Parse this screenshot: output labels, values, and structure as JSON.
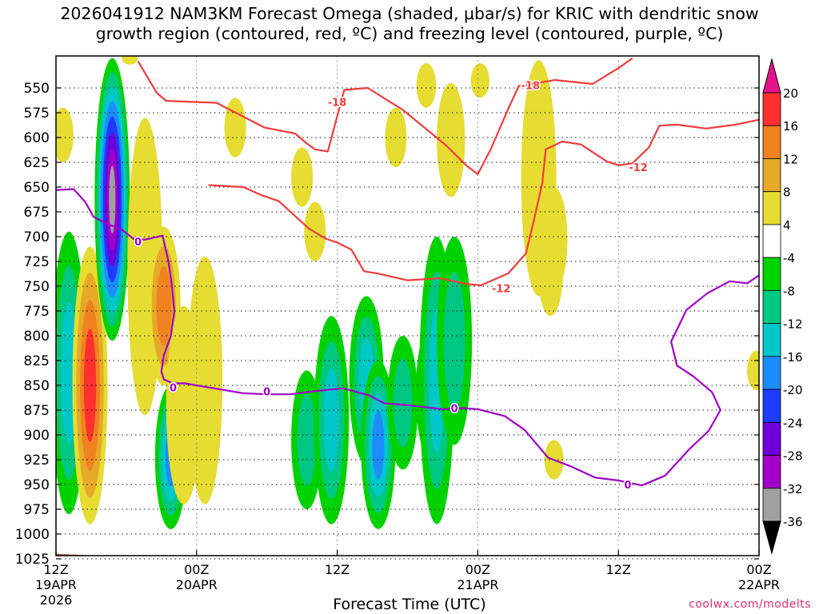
{
  "header": {
    "title_line1": "2026041912 NAM3KM Forecast Omega (shaded, μbar/s) for KRIC with dendritic snow",
    "title_line2": "growth region (contoured, red, ºC) and freezing level (contoured, purple, ºC)"
  },
  "footer": {
    "credit": "coolwx.com/modelts",
    "x_axis_title": "Forecast Time (UTC)"
  },
  "chart_data": {
    "type": "heatmap",
    "title": "2026041912 NAM3KM Forecast Omega (shaded, μbar/s) for KRIC with dendritic snow growth region (contoured, red, ºC) and freezing level (contoured, purple, ºC)",
    "xlabel": "Forecast Time (UTC)",
    "ylabel": "",
    "x_unit": "forecast hours from 12Z 19APR 2026",
    "xlim": [
      0,
      60
    ],
    "x_ticks": [
      {
        "x": 0,
        "label": [
          "12Z",
          "19APR",
          "2026"
        ]
      },
      {
        "x": 12,
        "label": [
          "00Z",
          "20APR"
        ]
      },
      {
        "x": 24,
        "label": [
          "12Z"
        ]
      },
      {
        "x": 36,
        "label": [
          "00Z",
          "21APR"
        ]
      },
      {
        "x": 48,
        "label": [
          "12Z"
        ]
      },
      {
        "x": 60,
        "label": [
          "00Z",
          "22APR"
        ]
      }
    ],
    "y_unit": "hPa",
    "ylim": [
      1037,
      520
    ],
    "y_ticks": [
      550,
      575,
      600,
      625,
      650,
      675,
      700,
      725,
      750,
      775,
      800,
      825,
      850,
      875,
      900,
      925,
      950,
      975,
      1000,
      1025
    ],
    "grid": true,
    "colorbar": {
      "ticks": [
        20,
        16,
        12,
        8,
        4,
        -4,
        -8,
        -12,
        -16,
        -20,
        -24,
        -28,
        -32,
        -36
      ],
      "bins": [
        {
          "range": "16 to 20",
          "color": "#ff3030"
        },
        {
          "range": "12 to 16",
          "color": "#f08220"
        },
        {
          "range": "8 to 12",
          "color": "#e6aa28"
        },
        {
          "range": "4 to 8",
          "color": "#e6dc32"
        },
        {
          "range": "-4 to 4",
          "color": "#ffffff"
        },
        {
          "range": "-8 to -4",
          "color": "#00d200"
        },
        {
          "range": "-12 to -8",
          "color": "#00c882"
        },
        {
          "range": "-16 to -12",
          "color": "#00c8c8"
        },
        {
          "range": "-20 to -16",
          "color": "#1e8cff"
        },
        {
          "range": "-24 to -20",
          "color": "#1e3cff"
        },
        {
          "range": "-28 to -24",
          "color": "#6e00dc"
        },
        {
          "range": "-32 to -28",
          "color": "#a000c8"
        },
        {
          "range": "-36 to -32",
          "color": "#a0a0a0"
        }
      ],
      "top_arrow_color": "#e6148c",
      "bottom_arrow_color": "#000000"
    },
    "omega_blobs": [
      {
        "x": 0.6,
        "top": 570,
        "bottom": 625,
        "peak": 4
      },
      {
        "x": 1.1,
        "top": 695,
        "bottom": 980,
        "peak": -12
      },
      {
        "x": 2.9,
        "top": 710,
        "bottom": 990,
        "peak": 18
      },
      {
        "x": 4.8,
        "top": 520,
        "bottom": 805,
        "peak": -34
      },
      {
        "x": 6.3,
        "top": 520,
        "bottom": 520,
        "peak": 4
      },
      {
        "x": 7.6,
        "top": 580,
        "bottom": 880,
        "peak": 4
      },
      {
        "x": 9.2,
        "top": 690,
        "bottom": 850,
        "peak": 14
      },
      {
        "x": 9.8,
        "top": 850,
        "bottom": 995,
        "peak": -18
      },
      {
        "x": 10.9,
        "top": 770,
        "bottom": 970,
        "peak": 4
      },
      {
        "x": 12.7,
        "top": 720,
        "bottom": 970,
        "peak": 4
      },
      {
        "x": 15.3,
        "top": 560,
        "bottom": 620,
        "peak": 4
      },
      {
        "x": 21.0,
        "top": 610,
        "bottom": 670,
        "peak": 4
      },
      {
        "x": 22.1,
        "top": 665,
        "bottom": 725,
        "peak": 4
      },
      {
        "x": 21.4,
        "top": 835,
        "bottom": 975,
        "peak": -10
      },
      {
        "x": 23.5,
        "top": 780,
        "bottom": 990,
        "peak": -12
      },
      {
        "x": 26.5,
        "top": 760,
        "bottom": 930,
        "peak": -12
      },
      {
        "x": 27.5,
        "top": 825,
        "bottom": 995,
        "peak": -18
      },
      {
        "x": 29.6,
        "top": 800,
        "bottom": 935,
        "peak": -10
      },
      {
        "x": 32.0,
        "top": 790,
        "bottom": 925,
        "peak": -10
      },
      {
        "x": 32.5,
        "top": 700,
        "bottom": 990,
        "peak": -14
      },
      {
        "x": 34.0,
        "top": 700,
        "bottom": 910,
        "peak": -10
      },
      {
        "x": 29.0,
        "top": 570,
        "bottom": 630,
        "peak": 4
      },
      {
        "x": 31.6,
        "top": 525,
        "bottom": 570,
        "peak": 4
      },
      {
        "x": 33.7,
        "top": 545,
        "bottom": 660,
        "peak": 4
      },
      {
        "x": 36.2,
        "top": 525,
        "bottom": 560,
        "peak": 4
      },
      {
        "x": 41.2,
        "top": 522,
        "bottom": 760,
        "peak": 4
      },
      {
        "x": 42.5,
        "top": 650,
        "bottom": 755,
        "peak": 4
      },
      {
        "x": 42.2,
        "top": 690,
        "bottom": 780,
        "peak": 4
      },
      {
        "x": 42.5,
        "top": 905,
        "bottom": 945,
        "peak": 4
      },
      {
        "x": 59.8,
        "top": 815,
        "bottom": 855,
        "peak": 4
      }
    ],
    "series": [
      {
        "name": "-18",
        "color": "#f03c3c",
        "points": [
          [
            7.0,
            523
          ],
          [
            8.6,
            555
          ],
          [
            9.4,
            563
          ],
          [
            13.7,
            565
          ],
          [
            17.8,
            590
          ],
          [
            20.4,
            596
          ],
          [
            21.4,
            606
          ],
          [
            22.1,
            612
          ],
          [
            23.2,
            614
          ],
          [
            24.6,
            552
          ],
          [
            26.6,
            550
          ],
          [
            29.6,
            572
          ],
          [
            33.3,
            608
          ],
          [
            35.0,
            628
          ],
          [
            36.0,
            637
          ],
          [
            37.1,
            612
          ],
          [
            38.6,
            571
          ],
          [
            39.5,
            548
          ],
          [
            42.6,
            542
          ],
          [
            45.8,
            546
          ],
          [
            48.0,
            530
          ],
          [
            49.2,
            520
          ]
        ],
        "labels": [
          {
            "x": 24.0,
            "y": 564,
            "text": "-18"
          },
          {
            "x": 40.5,
            "y": 547,
            "text": "-18"
          }
        ]
      },
      {
        "name": "-12",
        "color": "#f03c3c",
        "points": [
          [
            13.0,
            648
          ],
          [
            16.0,
            650
          ],
          [
            17.5,
            658
          ],
          [
            19.0,
            664
          ],
          [
            21.6,
            692
          ],
          [
            23.0,
            702
          ],
          [
            24.0,
            706
          ],
          [
            25.2,
            713
          ],
          [
            26.3,
            735
          ],
          [
            27.4,
            737
          ],
          [
            30.0,
            744
          ],
          [
            32.7,
            742
          ],
          [
            35.2,
            748
          ],
          [
            36.3,
            749
          ],
          [
            38.6,
            737
          ],
          [
            40.1,
            717
          ],
          [
            40.8,
            683
          ],
          [
            41.5,
            646
          ],
          [
            41.8,
            612
          ],
          [
            43.2,
            604
          ],
          [
            44.8,
            607
          ],
          [
            47.0,
            624
          ],
          [
            48.0,
            628
          ],
          [
            49.2,
            626
          ],
          [
            50.6,
            610
          ],
          [
            51.5,
            588
          ],
          [
            53.0,
            587
          ],
          [
            55.5,
            591
          ],
          [
            58.0,
            587
          ],
          [
            60.0,
            582
          ]
        ],
        "labels": [
          {
            "x": 38.0,
            "y": 752,
            "text": "-12"
          },
          {
            "x": 49.7,
            "y": 630,
            "text": "-12"
          }
        ]
      },
      {
        "name": "0",
        "color": "#a000c8",
        "points": [
          [
            0.0,
            653
          ],
          [
            1.5,
            652
          ],
          [
            2.5,
            665
          ],
          [
            3.2,
            680
          ],
          [
            4.5,
            688
          ],
          [
            5.5,
            692
          ],
          [
            6.6,
            702
          ],
          [
            7.6,
            703
          ],
          [
            9.1,
            699
          ],
          [
            9.6,
            725
          ],
          [
            9.9,
            750
          ],
          [
            10.1,
            775
          ],
          [
            9.8,
            800
          ],
          [
            9.2,
            820
          ],
          [
            9.0,
            836
          ],
          [
            9.2,
            844
          ],
          [
            10.0,
            848
          ],
          [
            11.0,
            848
          ],
          [
            13.0,
            852
          ],
          [
            16.0,
            858
          ],
          [
            18.0,
            859
          ],
          [
            20.0,
            859
          ],
          [
            22.0,
            856
          ],
          [
            24.5,
            853
          ],
          [
            26.7,
            860
          ],
          [
            28.0,
            868
          ],
          [
            30.0,
            870
          ],
          [
            31.5,
            872
          ],
          [
            33.0,
            874
          ],
          [
            34.8,
            873
          ],
          [
            36.0,
            874
          ],
          [
            38.3,
            881
          ],
          [
            40.0,
            895
          ],
          [
            42.0,
            923
          ],
          [
            44.0,
            932
          ],
          [
            46.0,
            943
          ],
          [
            48.0,
            946
          ],
          [
            50.0,
            951
          ],
          [
            52.0,
            941
          ],
          [
            54.0,
            915
          ],
          [
            55.7,
            896
          ],
          [
            56.7,
            875
          ],
          [
            56.0,
            857
          ],
          [
            54.4,
            841
          ],
          [
            53.0,
            830
          ],
          [
            52.5,
            806
          ],
          [
            53.8,
            774
          ],
          [
            55.6,
            757
          ],
          [
            57.5,
            745
          ],
          [
            59.0,
            747
          ],
          [
            60.0,
            739
          ]
        ],
        "labels": [
          {
            "x": 7.0,
            "y": 705,
            "text": "0"
          },
          {
            "x": 10.0,
            "y": 852,
            "text": "0"
          },
          {
            "x": 18.0,
            "y": 856,
            "text": "0"
          },
          {
            "x": 34.0,
            "y": 873,
            "text": "0"
          },
          {
            "x": 48.8,
            "y": 950,
            "text": "0"
          }
        ]
      }
    ],
    "ground": {
      "color": "#a0522d",
      "top_hpa": [
        [
          0,
          1020
        ],
        [
          8,
          1024
        ],
        [
          16,
          1023
        ],
        [
          24,
          1024
        ],
        [
          30,
          1023
        ],
        [
          36,
          1026
        ],
        [
          42,
          1027
        ],
        [
          48,
          1029
        ],
        [
          49.5,
          1030
        ],
        [
          54,
          1027
        ],
        [
          60,
          1025
        ]
      ]
    }
  }
}
